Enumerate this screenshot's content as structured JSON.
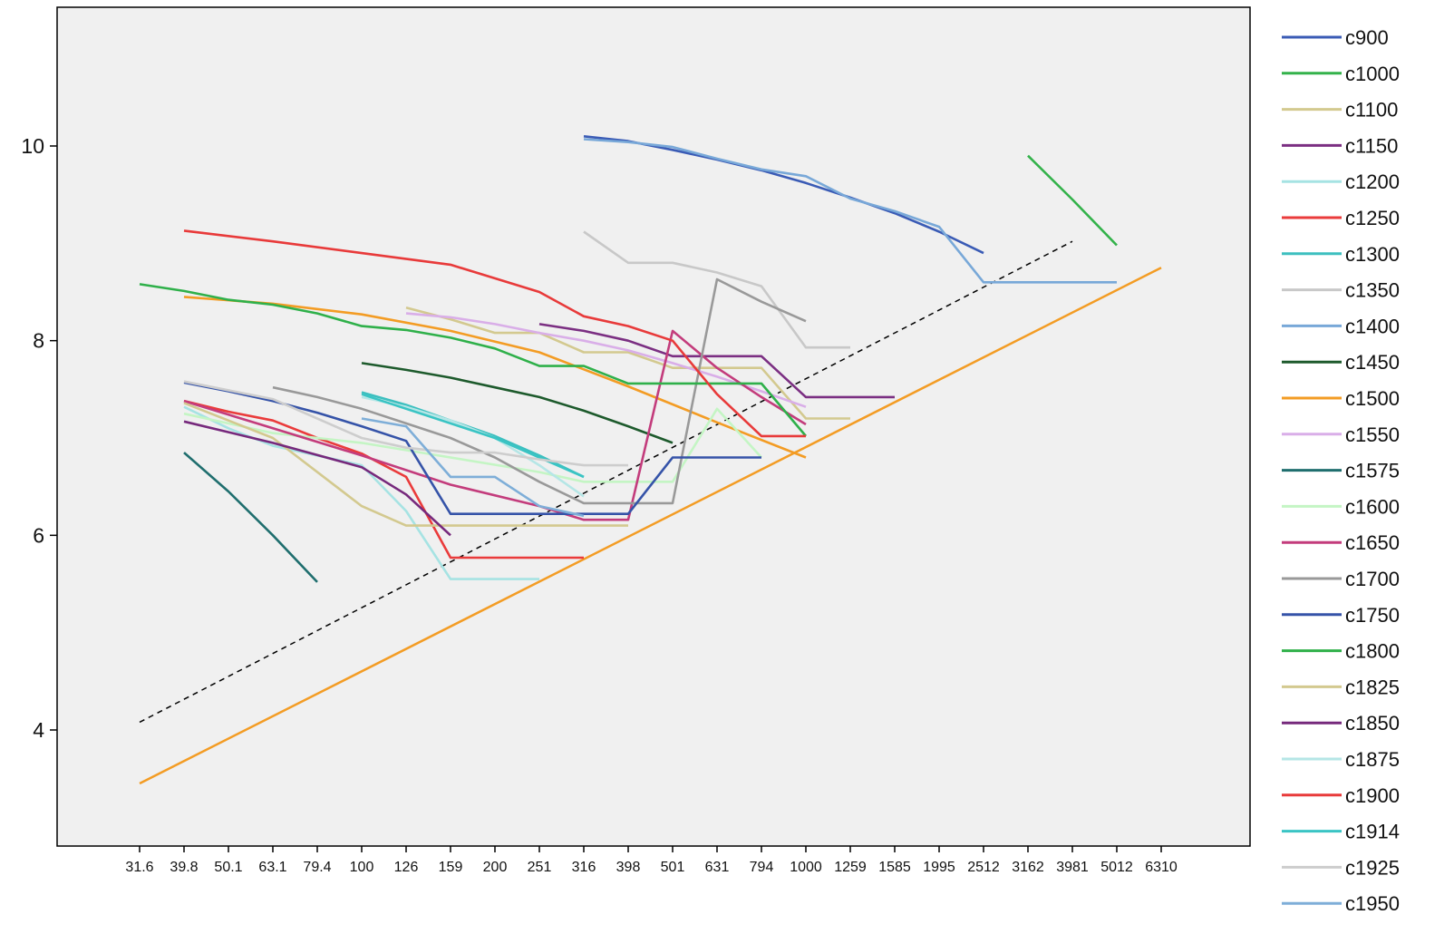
{
  "chart_data": {
    "type": "line",
    "title": "",
    "xlabel": "",
    "ylabel": "",
    "x_scale": "log",
    "x_ticks": [
      31.6,
      39.8,
      50.1,
      63.1,
      79.4,
      100,
      126,
      159,
      200,
      251,
      316,
      398,
      501,
      631,
      794,
      1000,
      1259,
      1585,
      1995,
      2512,
      3162,
      3981,
      5012,
      6310
    ],
    "y_ticks": [
      4,
      6,
      8,
      10
    ],
    "ylim": [
      2.7,
      11.5
    ],
    "grid": false,
    "legend_position": "right",
    "series": [
      {
        "name": "c900",
        "color": "#3a5bb5",
        "x": [
          316,
          398,
          501,
          631,
          794,
          1000,
          1259,
          1585,
          1995,
          2512
        ],
        "y": [
          10.1,
          10.05,
          9.96,
          9.86,
          9.75,
          9.62,
          9.47,
          9.31,
          9.12,
          8.9
        ]
      },
      {
        "name": "c1000",
        "color": "#33b24a",
        "x": [
          3162,
          3981,
          5012
        ],
        "y": [
          9.9,
          9.45,
          8.98
        ]
      },
      {
        "name": "c1100",
        "color": "#d3c98f",
        "x": [
          126,
          159,
          200,
          251,
          316,
          398,
          501,
          631,
          794,
          1000,
          1259
        ],
        "y": [
          8.34,
          8.22,
          8.08,
          8.08,
          7.88,
          7.88,
          7.72,
          7.72,
          7.72,
          7.2,
          7.2
        ]
      },
      {
        "name": "c1150",
        "color": "#7b2f82",
        "x": [
          251,
          316,
          398,
          501,
          631,
          794,
          1000,
          1259,
          1585
        ],
        "y": [
          8.17,
          8.1,
          8.0,
          7.84,
          7.84,
          7.84,
          7.42,
          7.42,
          7.42
        ]
      },
      {
        "name": "c1200",
        "color": "#a6e3e3",
        "x": [
          39.8,
          50.1,
          63.1,
          79.4,
          100,
          126,
          159,
          200,
          251
        ],
        "y": [
          7.32,
          7.1,
          6.92,
          6.82,
          6.72,
          6.25,
          5.55,
          5.55,
          5.55
        ]
      },
      {
        "name": "c1250",
        "color": "#ea3b3b",
        "x": [
          39.8,
          50.1,
          63.1,
          79.4,
          100,
          126,
          159,
          200,
          251,
          316
        ],
        "y": [
          7.38,
          7.27,
          7.18,
          7.0,
          6.84,
          6.6,
          5.77,
          5.77,
          5.77,
          5.77
        ]
      },
      {
        "name": "c1300",
        "color": "#3cbfbf",
        "x": [
          100,
          126,
          159,
          200,
          251,
          316
        ],
        "y": [
          7.47,
          7.34,
          7.18,
          7.02,
          6.82,
          6.6
        ]
      },
      {
        "name": "c1350",
        "color": "#c8c8c8",
        "x": [
          316,
          398,
          501,
          631,
          794,
          1000,
          1259
        ],
        "y": [
          9.12,
          8.8,
          8.8,
          8.7,
          8.56,
          7.93,
          7.93
        ]
      },
      {
        "name": "c1400",
        "color": "#78a8d8",
        "x": [
          316,
          398,
          501,
          631,
          794,
          1000,
          1259,
          1585,
          1995,
          2512,
          3162,
          3981,
          5012
        ],
        "y": [
          10.07,
          10.04,
          9.99,
          9.87,
          9.76,
          9.69,
          9.46,
          9.33,
          9.17,
          8.6,
          8.6,
          8.6,
          8.6
        ]
      },
      {
        "name": "c1450",
        "color": "#1d5a2c",
        "x": [
          100,
          126,
          159,
          200,
          251,
          316,
          398,
          501
        ],
        "y": [
          7.77,
          7.7,
          7.62,
          7.52,
          7.42,
          7.28,
          7.12,
          6.95
        ]
      },
      {
        "name": "c1500",
        "color": "#f39c24",
        "x": [
          39.8,
          63.1,
          100,
          159,
          251,
          398,
          631,
          1000
        ],
        "y": [
          8.45,
          8.38,
          8.27,
          8.1,
          7.88,
          7.53,
          7.16,
          6.8
        ]
      },
      {
        "name": "c1550",
        "color": "#d9aee8",
        "x": [
          126,
          159,
          200,
          251,
          316,
          398,
          501,
          631,
          794,
          1000
        ],
        "y": [
          8.28,
          8.24,
          8.17,
          8.08,
          8.0,
          7.9,
          7.77,
          7.63,
          7.48,
          7.32
        ]
      },
      {
        "name": "c1575",
        "color": "#1f6e6e",
        "x": [
          39.8,
          50.1,
          63.1,
          79.4
        ],
        "y": [
          6.85,
          6.45,
          6.0,
          5.52
        ]
      },
      {
        "name": "c1600",
        "color": "#c4f5c4",
        "x": [
          39.8,
          63.1,
          100,
          159,
          251,
          316,
          398,
          501,
          631,
          794
        ],
        "y": [
          7.25,
          7.05,
          6.95,
          6.8,
          6.65,
          6.55,
          6.55,
          6.55,
          7.3,
          6.8
        ]
      },
      {
        "name": "c1650",
        "color": "#c33c7c",
        "x": [
          39.8,
          63.1,
          100,
          159,
          251,
          316,
          398,
          501,
          631,
          794,
          1000
        ],
        "y": [
          7.38,
          7.1,
          6.82,
          6.52,
          6.3,
          6.16,
          6.16,
          8.1,
          7.72,
          7.42,
          7.14
        ]
      },
      {
        "name": "c1700",
        "color": "#999999",
        "x": [
          63.1,
          79.4,
          100,
          126,
          159,
          200,
          251,
          316,
          398,
          501,
          631,
          794,
          1000
        ],
        "y": [
          7.52,
          7.42,
          7.3,
          7.15,
          7.0,
          6.8,
          6.55,
          6.33,
          6.33,
          6.33,
          8.63,
          8.4,
          8.2
        ]
      },
      {
        "name": "c1750",
        "color": "#3553a8",
        "x": [
          39.8,
          50.1,
          63.1,
          79.4,
          100,
          126,
          159,
          200,
          251,
          316,
          398,
          501,
          631,
          794
        ],
        "y": [
          7.57,
          7.48,
          7.38,
          7.26,
          7.12,
          6.97,
          6.22,
          6.22,
          6.22,
          6.22,
          6.22,
          6.8,
          6.8,
          6.8
        ]
      },
      {
        "name": "c1800",
        "color": "#2fb04a",
        "x": [
          31.6,
          39.8,
          50.1,
          63.1,
          79.4,
          100,
          126,
          159,
          200,
          251,
          316,
          398,
          501,
          631,
          794,
          1000
        ],
        "y": [
          8.58,
          8.51,
          8.42,
          8.37,
          8.28,
          8.15,
          8.11,
          8.03,
          7.92,
          7.74,
          7.74,
          7.56,
          7.56,
          7.56,
          7.56,
          7.02
        ]
      },
      {
        "name": "c1825",
        "color": "#d3c98f",
        "x": [
          39.8,
          63.1,
          100,
          126,
          159,
          200,
          251,
          316,
          398
        ],
        "y": [
          7.36,
          7.0,
          6.3,
          6.1,
          6.1,
          6.1,
          6.1,
          6.1,
          6.1
        ]
      },
      {
        "name": "c1850",
        "color": "#76297c",
        "x": [
          39.8,
          63.1,
          100,
          126,
          159
        ],
        "y": [
          7.17,
          6.95,
          6.7,
          6.42,
          6.0
        ]
      },
      {
        "name": "c1875",
        "color": "#b5e6e6",
        "x": [
          100,
          126,
          159,
          200,
          251,
          316
        ],
        "y": [
          7.42,
          7.32,
          7.18,
          7.0,
          6.72,
          6.4
        ]
      },
      {
        "name": "c1900",
        "color": "#e83a3a",
        "x": [
          39.8,
          63.1,
          100,
          159,
          251,
          316,
          398,
          501,
          631,
          794,
          1000
        ],
        "y": [
          9.13,
          9.02,
          8.9,
          8.78,
          8.5,
          8.25,
          8.15,
          8.0,
          7.45,
          7.02,
          7.02
        ]
      },
      {
        "name": "c1914",
        "color": "#3ac4c4",
        "x": [
          100,
          126,
          159,
          200,
          251,
          316
        ],
        "y": [
          7.45,
          7.3,
          7.15,
          7.0,
          6.8,
          6.6
        ]
      },
      {
        "name": "c1925",
        "color": "#cdcdcd",
        "x": [
          39.8,
          63.1,
          100,
          126,
          159,
          200,
          251,
          316,
          398
        ],
        "y": [
          7.58,
          7.4,
          7.0,
          6.9,
          6.85,
          6.85,
          6.78,
          6.72,
          6.72
        ]
      },
      {
        "name": "c1950",
        "color": "#7eaed8",
        "x": [
          100,
          126,
          159,
          200,
          251,
          316
        ],
        "y": [
          7.2,
          7.12,
          6.6,
          6.6,
          6.3,
          6.2
        ]
      }
    ],
    "reference_lines": [
      {
        "style": "dashed",
        "color": "#000000",
        "x": [
          31.6,
          3981
        ],
        "y": [
          4.08,
          9.02
        ]
      },
      {
        "style": "solid",
        "color": "#f39c24",
        "x": [
          31.6,
          6310
        ],
        "y": [
          3.45,
          8.75
        ]
      }
    ]
  }
}
